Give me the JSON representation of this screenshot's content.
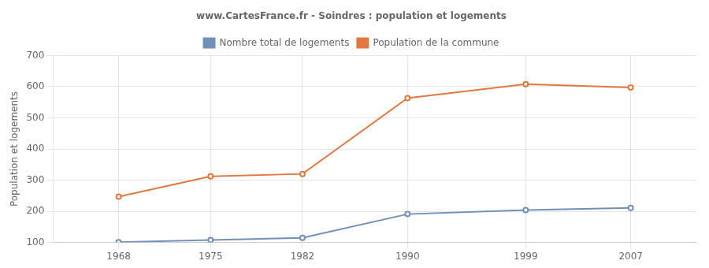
{
  "chart_data": {
    "type": "line",
    "title": "www.CartesFrance.fr - Soindres : population et logements",
    "ylabel": "Population et logements",
    "x": [
      1968,
      1975,
      1982,
      1990,
      1999,
      2007
    ],
    "series": [
      {
        "name": "Nombre total de logements",
        "color": "#7090b8",
        "values": [
          101,
          108,
          115,
          191,
          204,
          211
        ]
      },
      {
        "name": "Population de la commune",
        "color": "#e07840",
        "values": [
          247,
          312,
          320,
          563,
          608,
          597
        ]
      }
    ],
    "xlim": [
      1963,
      2012
    ],
    "xticks": [
      1968,
      1975,
      1982,
      1990,
      1999,
      2007
    ],
    "ylim": [
      100,
      700
    ],
    "yticks": [
      100,
      200,
      300,
      400,
      500,
      600,
      700
    ],
    "grid": true,
    "legend": "top",
    "marker": "circle"
  }
}
